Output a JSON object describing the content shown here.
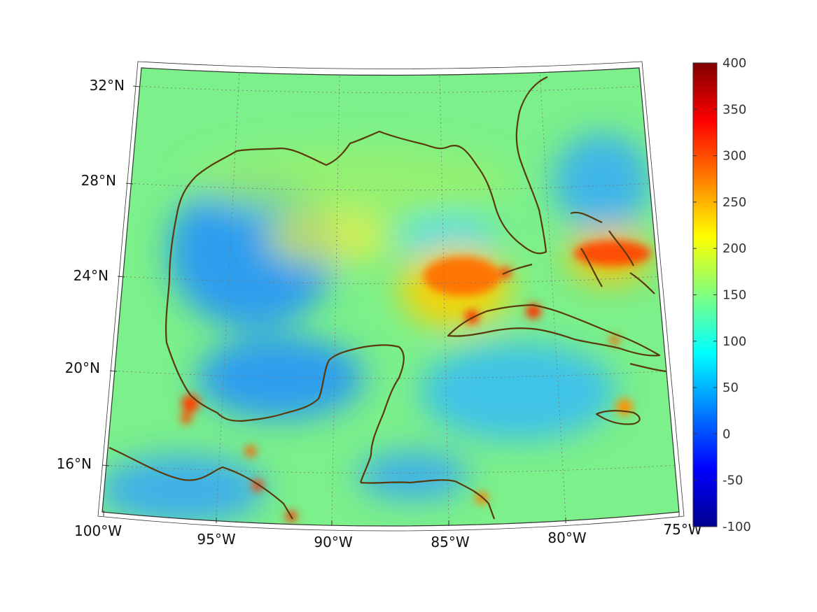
{
  "map": {
    "projection": "conic",
    "extent": {
      "lon_min": -100,
      "lon_max": -75,
      "lat_min": 14,
      "lat_max": 33
    },
    "grid_lines": true,
    "latitude_labels": [
      {
        "lat": 32,
        "text": "32°N"
      },
      {
        "lat": 28,
        "text": "28°N"
      },
      {
        "lat": 24,
        "text": "24°N"
      },
      {
        "lat": 20,
        "text": "20°N"
      },
      {
        "lat": 16,
        "text": "16°N"
      }
    ],
    "longitude_labels": [
      {
        "lon": -100,
        "text": "100°W"
      },
      {
        "lon": -95,
        "text": "95°W"
      },
      {
        "lon": -90,
        "text": "90°W"
      },
      {
        "lon": -85,
        "text": "85°W"
      },
      {
        "lon": -80,
        "text": "80°W"
      },
      {
        "lon": -75,
        "text": "75°W"
      }
    ],
    "colors": {
      "coastline": "#5a3a0a",
      "grid": "#777777",
      "frame": "#333333"
    }
  },
  "colorbar": {
    "min": -100,
    "max": 400,
    "colormap": "jet",
    "ticks": [
      "400",
      "350",
      "300",
      "250",
      "200",
      "150",
      "100",
      "50",
      "0",
      "-50",
      "-100"
    ]
  },
  "field_features": [
    {
      "name": "gulf-west-low",
      "lon": -95.5,
      "lat": 24.5,
      "value": 60
    },
    {
      "name": "bay-of-campeche-low",
      "lon": -93.5,
      "lat": 20.2,
      "value": 55
    },
    {
      "name": "north-gulf-band",
      "lon": -91,
      "lat": 28.3,
      "value": 170
    },
    {
      "name": "florida-straits-high",
      "lon": -85.3,
      "lat": 24,
      "value": 280
    },
    {
      "name": "bahamas-high",
      "lon": -78,
      "lat": 25.3,
      "value": 290
    },
    {
      "name": "cuba-west-hotspot",
      "lon": -84.1,
      "lat": 22.4,
      "value": 330
    },
    {
      "name": "cuba-central-hotspot",
      "lon": -81.5,
      "lat": 22.6,
      "value": 340
    },
    {
      "name": "veracruz-hotspot",
      "lon": -96.4,
      "lat": 18.6,
      "value": 310
    },
    {
      "name": "jamaica-high",
      "lon": -77.6,
      "lat": 18.4,
      "value": 250
    },
    {
      "name": "caribbean-low",
      "lon": -80,
      "lat": 19.5,
      "value": 80
    },
    {
      "name": "atlantic-low",
      "lon": -77,
      "lat": 28,
      "value": 80
    }
  ]
}
